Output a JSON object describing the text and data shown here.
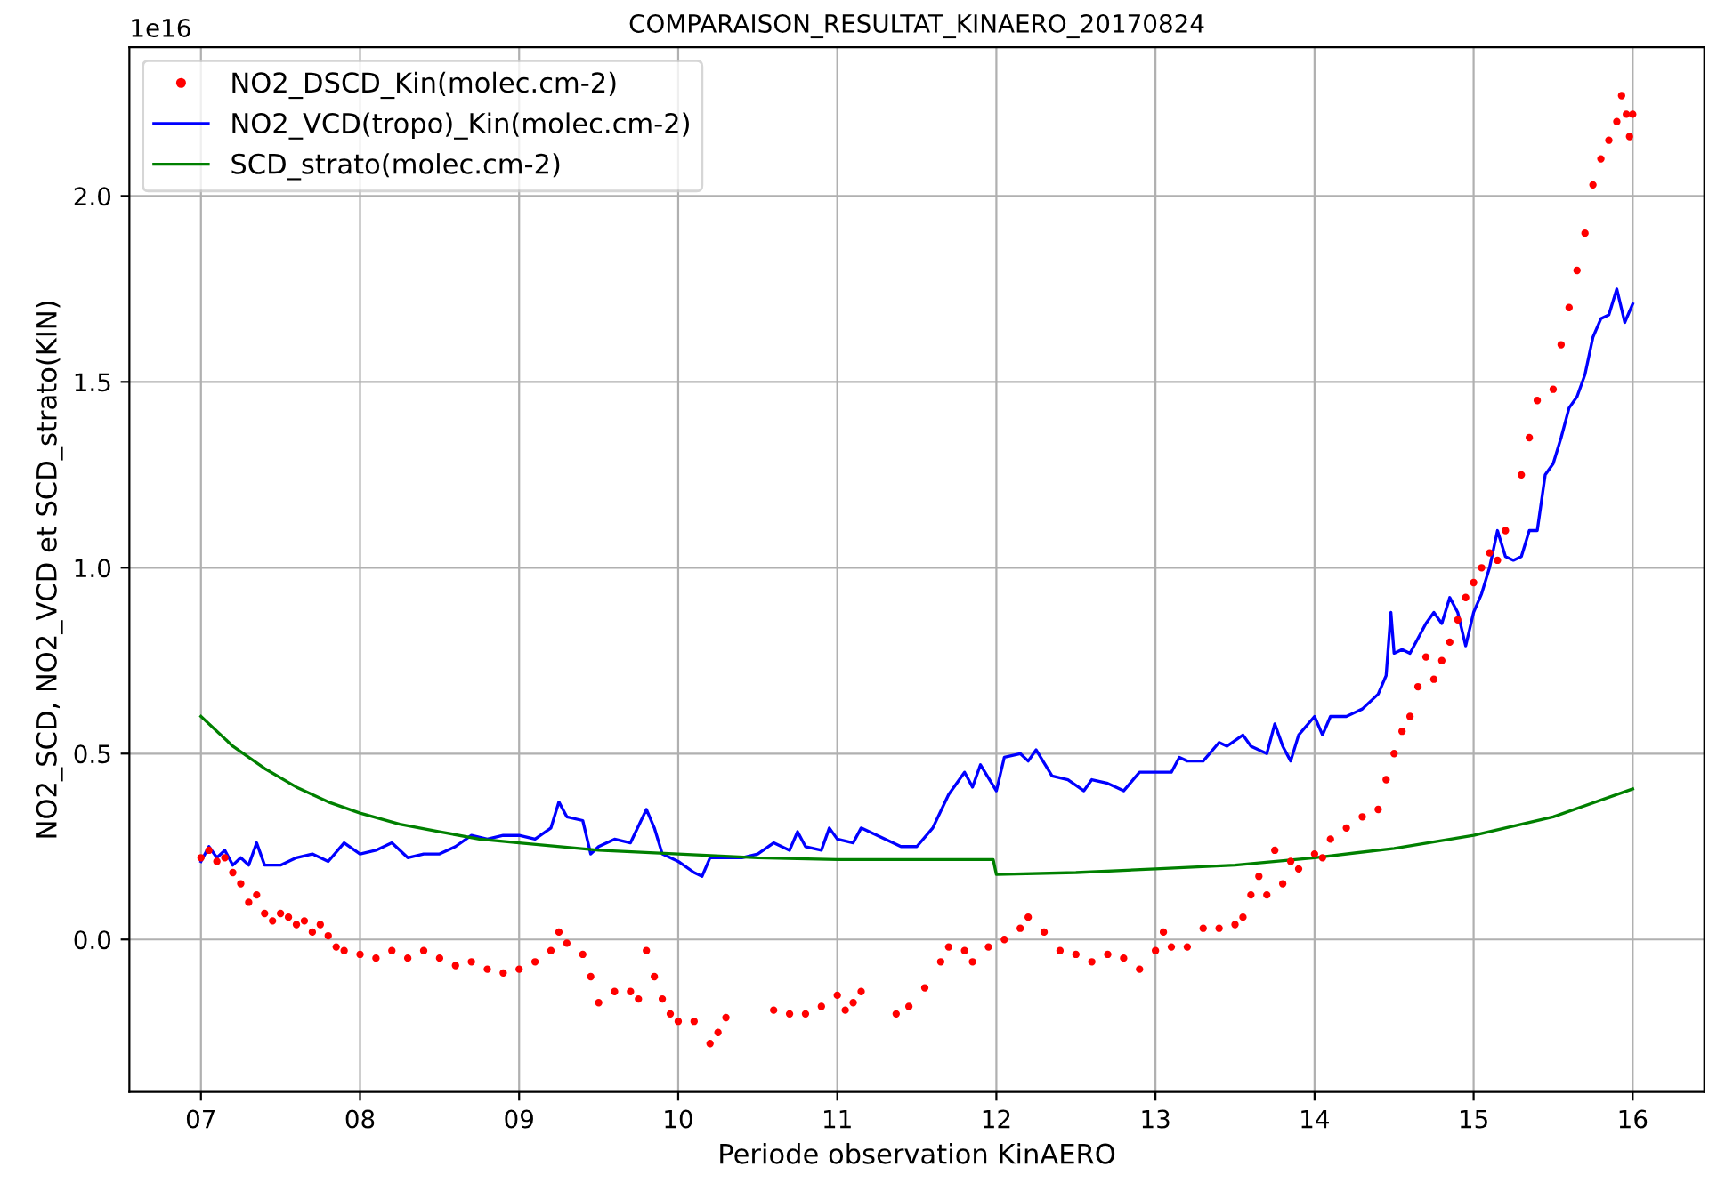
{
  "chart_data": {
    "type": "line",
    "title": "COMPARAISON_RESULTAT_KINAERO_20170824",
    "xlabel": "Periode observation KinAERO",
    "ylabel": "NO2_SCD, NO2_VCD et SCD_strato(KIN)",
    "annotations": [
      "1e16"
    ],
    "xlim": [
      6.55,
      16.45
    ],
    "ylim": [
      -0.41,
      2.4
    ],
    "xticks": [
      {
        "value": 7,
        "label": "07"
      },
      {
        "value": 8,
        "label": "08"
      },
      {
        "value": 9,
        "label": "09"
      },
      {
        "value": 10,
        "label": "10"
      },
      {
        "value": 11,
        "label": "11"
      },
      {
        "value": 12,
        "label": "12"
      },
      {
        "value": 13,
        "label": "13"
      },
      {
        "value": 14,
        "label": "14"
      },
      {
        "value": 15,
        "label": "15"
      },
      {
        "value": 16,
        "label": "16"
      }
    ],
    "yticks": [
      {
        "value": 0,
        "label": "0.0"
      },
      {
        "value": 0.5,
        "label": "0.5"
      },
      {
        "value": 1,
        "label": "1.0"
      },
      {
        "value": 1.5,
        "label": "1.5"
      },
      {
        "value": 2,
        "label": "2.0"
      }
    ],
    "grid": true,
    "legend": "top left",
    "series": [
      {
        "name": "NO2_DSCD_Kin(molec.cm-2)",
        "type": "scatter",
        "marker": "circle",
        "color": "#ff0000",
        "x": [
          7.0,
          7.05,
          7.1,
          7.15,
          7.2,
          7.25,
          7.3,
          7.35,
          7.4,
          7.45,
          7.5,
          7.55,
          7.6,
          7.65,
          7.7,
          7.75,
          7.8,
          7.85,
          7.9,
          8.0,
          8.1,
          8.2,
          8.3,
          8.4,
          8.5,
          8.6,
          8.7,
          8.8,
          8.9,
          9.0,
          9.1,
          9.2,
          9.25,
          9.3,
          9.4,
          9.45,
          9.5,
          9.6,
          9.7,
          9.75,
          9.8,
          9.85,
          9.9,
          9.95,
          10.0,
          10.1,
          10.2,
          10.25,
          10.3,
          10.6,
          10.7,
          10.8,
          10.9,
          11.0,
          11.05,
          11.1,
          11.15,
          11.37,
          11.45,
          11.55,
          11.65,
          11.7,
          11.8,
          11.85,
          11.95,
          12.05,
          12.15,
          12.2,
          12.3,
          12.4,
          12.5,
          12.6,
          12.7,
          12.8,
          12.9,
          13.0,
          13.05,
          13.1,
          13.2,
          13.3,
          13.4,
          13.5,
          13.55,
          13.6,
          13.65,
          13.7,
          13.75,
          13.8,
          13.85,
          13.9,
          14.0,
          14.05,
          14.1,
          14.2,
          14.3,
          14.4,
          14.45,
          14.5,
          14.55,
          14.6,
          14.65,
          14.7,
          14.75,
          14.8,
          14.85,
          14.9,
          14.95,
          15.0,
          15.05,
          15.1,
          15.15,
          15.2,
          15.3,
          15.35,
          15.4,
          15.5,
          15.55,
          15.6,
          15.65,
          15.7,
          15.75,
          15.8,
          15.85,
          15.9,
          15.93,
          15.96,
          15.98,
          16.0
        ],
        "values": [
          0.22,
          0.24,
          0.21,
          0.22,
          0.18,
          0.15,
          0.1,
          0.12,
          0.07,
          0.05,
          0.07,
          0.06,
          0.04,
          0.05,
          0.02,
          0.04,
          0.01,
          -0.02,
          -0.03,
          -0.04,
          -0.05,
          -0.03,
          -0.05,
          -0.03,
          -0.05,
          -0.07,
          -0.06,
          -0.08,
          -0.09,
          -0.08,
          -0.06,
          -0.03,
          0.02,
          -0.01,
          -0.04,
          -0.1,
          -0.17,
          -0.14,
          -0.14,
          -0.16,
          -0.03,
          -0.1,
          -0.16,
          -0.2,
          -0.22,
          -0.22,
          -0.28,
          -0.25,
          -0.21,
          -0.19,
          -0.2,
          -0.2,
          -0.18,
          -0.15,
          -0.19,
          -0.17,
          -0.14,
          -0.2,
          -0.18,
          -0.13,
          -0.06,
          -0.02,
          -0.03,
          -0.06,
          -0.02,
          0.0,
          0.03,
          0.06,
          0.02,
          -0.03,
          -0.04,
          -0.06,
          -0.04,
          -0.05,
          -0.08,
          -0.03,
          0.02,
          -0.02,
          -0.02,
          0.03,
          0.03,
          0.04,
          0.06,
          0.12,
          0.17,
          0.12,
          0.24,
          0.15,
          0.21,
          0.19,
          0.23,
          0.22,
          0.27,
          0.3,
          0.33,
          0.35,
          0.43,
          0.5,
          0.56,
          0.6,
          0.68,
          0.76,
          0.7,
          0.75,
          0.8,
          0.86,
          0.92,
          0.96,
          1.0,
          1.04,
          1.02,
          1.1,
          1.25,
          1.35,
          1.45,
          1.48,
          1.6,
          1.7,
          1.8,
          1.9,
          2.03,
          2.1,
          2.15,
          2.2,
          2.27,
          2.22,
          2.16,
          2.22
        ]
      },
      {
        "name": "NO2_VCD(tropo)_Kin(molec.cm-2)",
        "color": "#0000ff",
        "x": [
          7.0,
          7.05,
          7.1,
          7.15,
          7.2,
          7.25,
          7.3,
          7.35,
          7.4,
          7.5,
          7.6,
          7.7,
          7.8,
          7.9,
          8.0,
          8.1,
          8.2,
          8.3,
          8.4,
          8.5,
          8.6,
          8.7,
          8.8,
          8.9,
          9.0,
          9.1,
          9.2,
          9.25,
          9.3,
          9.4,
          9.45,
          9.5,
          9.6,
          9.7,
          9.8,
          9.85,
          9.9,
          10.0,
          10.1,
          10.15,
          10.2,
          10.4,
          10.5,
          10.6,
          10.7,
          10.75,
          10.8,
          10.9,
          10.95,
          11.0,
          11.1,
          11.15,
          11.4,
          11.5,
          11.6,
          11.7,
          11.8,
          11.85,
          11.9,
          12.0,
          12.05,
          12.15,
          12.2,
          12.25,
          12.35,
          12.45,
          12.55,
          12.6,
          12.7,
          12.8,
          12.9,
          13.0,
          13.1,
          13.15,
          13.2,
          13.3,
          13.4,
          13.45,
          13.55,
          13.6,
          13.7,
          13.75,
          13.8,
          13.85,
          13.9,
          14.0,
          14.05,
          14.1,
          14.2,
          14.3,
          14.4,
          14.45,
          14.48,
          14.5,
          14.55,
          14.6,
          14.7,
          14.75,
          14.8,
          14.85,
          14.9,
          14.95,
          15.0,
          15.05,
          15.1,
          15.15,
          15.2,
          15.25,
          15.3,
          15.35,
          15.4,
          15.45,
          15.5,
          15.55,
          15.6,
          15.65,
          15.7,
          15.75,
          15.8,
          15.85,
          15.9,
          15.95,
          16.0
        ],
        "values": [
          0.21,
          0.25,
          0.22,
          0.24,
          0.2,
          0.22,
          0.2,
          0.26,
          0.2,
          0.2,
          0.22,
          0.23,
          0.21,
          0.26,
          0.23,
          0.24,
          0.26,
          0.22,
          0.23,
          0.23,
          0.25,
          0.28,
          0.27,
          0.28,
          0.28,
          0.27,
          0.3,
          0.37,
          0.33,
          0.32,
          0.23,
          0.25,
          0.27,
          0.26,
          0.35,
          0.3,
          0.23,
          0.21,
          0.18,
          0.17,
          0.22,
          0.22,
          0.23,
          0.26,
          0.24,
          0.29,
          0.25,
          0.24,
          0.3,
          0.27,
          0.26,
          0.3,
          0.25,
          0.25,
          0.3,
          0.39,
          0.45,
          0.41,
          0.47,
          0.4,
          0.49,
          0.5,
          0.48,
          0.51,
          0.44,
          0.43,
          0.4,
          0.43,
          0.42,
          0.4,
          0.45,
          0.45,
          0.45,
          0.49,
          0.48,
          0.48,
          0.53,
          0.52,
          0.55,
          0.52,
          0.5,
          0.58,
          0.52,
          0.48,
          0.55,
          0.6,
          0.55,
          0.6,
          0.6,
          0.62,
          0.66,
          0.71,
          0.88,
          0.77,
          0.78,
          0.77,
          0.85,
          0.88,
          0.85,
          0.92,
          0.88,
          0.79,
          0.88,
          0.93,
          1.0,
          1.1,
          1.03,
          1.02,
          1.03,
          1.1,
          1.1,
          1.25,
          1.28,
          1.35,
          1.43,
          1.46,
          1.52,
          1.62,
          1.67,
          1.68,
          1.75,
          1.66,
          1.71
        ]
      },
      {
        "name": "SCD_strato(molec.cm-2)",
        "color": "#008000",
        "x": [
          7.0,
          7.2,
          7.4,
          7.6,
          7.8,
          8.0,
          8.25,
          8.5,
          8.75,
          9.0,
          9.5,
          10.0,
          10.5,
          11.0,
          11.5,
          11.98,
          12.0,
          12.5,
          13.0,
          13.5,
          14.0,
          14.5,
          15.0,
          15.5,
          16.0
        ],
        "values": [
          0.6,
          0.52,
          0.46,
          0.41,
          0.37,
          0.34,
          0.31,
          0.29,
          0.27,
          0.26,
          0.24,
          0.23,
          0.22,
          0.215,
          0.215,
          0.215,
          0.175,
          0.18,
          0.19,
          0.2,
          0.22,
          0.245,
          0.28,
          0.33,
          0.405
        ]
      }
    ]
  }
}
